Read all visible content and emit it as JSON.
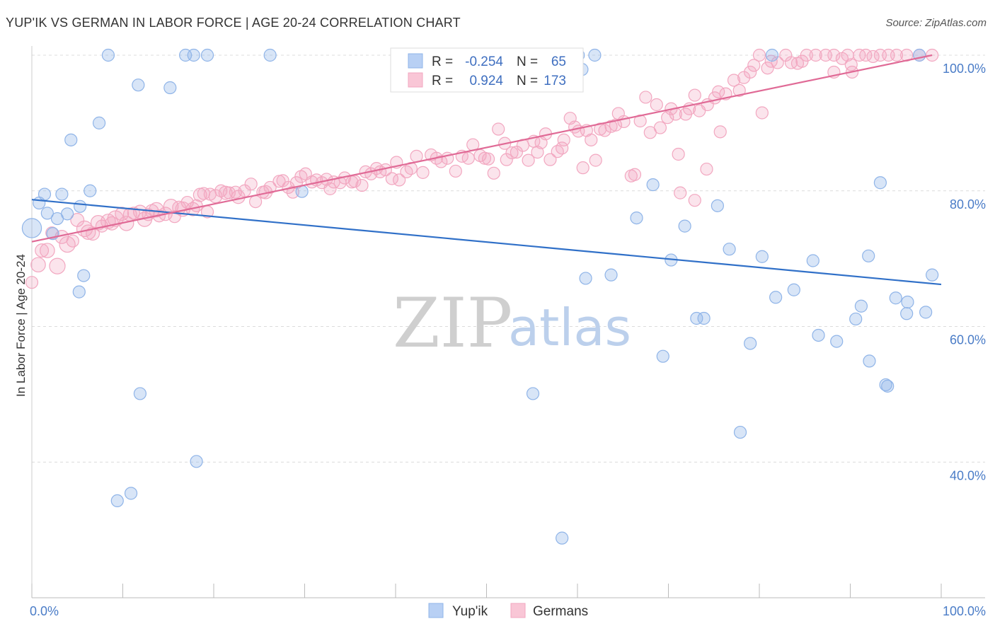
{
  "title": "YUP'IK VS GERMAN IN LABOR FORCE | AGE 20-24 CORRELATION CHART",
  "source": "Source: ZipAtlas.com",
  "watermark": {
    "zip": "ZIP",
    "atlas": "atlas"
  },
  "chart_data": {
    "type": "scatter",
    "ylabel": "In Labor Force | Age 20-24",
    "xlabel": "",
    "x_tick_labels": [
      "0.0%",
      "100.0%"
    ],
    "y_tick_labels": [
      "40.0%",
      "60.0%",
      "80.0%",
      "100.0%"
    ],
    "y_ticks": [
      40,
      60,
      80,
      100
    ],
    "xlim": [
      0,
      105
    ],
    "ylim": [
      20,
      102
    ],
    "grid": "horizontal dashed",
    "legend_position": "top-center",
    "colors": {
      "yupik": "#8fb4e8",
      "yupik_line": "#3070c8",
      "germans": "#f2a7c0",
      "germans_line": "#e06a96"
    },
    "stats": [
      {
        "r_label": "R =",
        "r": "-0.254",
        "n_label": "N =",
        "n": "65"
      },
      {
        "r_label": "R =",
        "r": "0.924",
        "n_label": "N =",
        "n": "173"
      }
    ],
    "series": [
      {
        "name": "Yup'ik",
        "trend": [
          [
            0,
            78.7
          ],
          [
            100,
            66.2
          ]
        ],
        "points": [
          [
            0,
            74.5,
            1.6
          ],
          [
            0.8,
            78.2,
            1
          ],
          [
            1.4,
            79.5,
            1
          ],
          [
            1.7,
            76.7,
            1
          ],
          [
            2.3,
            73.7,
            1
          ],
          [
            2.8,
            75.9,
            1
          ],
          [
            3.3,
            79.5,
            1
          ],
          [
            3.9,
            76.6,
            1
          ],
          [
            4.3,
            87.5,
            1
          ],
          [
            5.2,
            65.1,
            1
          ],
          [
            5.3,
            77.7,
            1
          ],
          [
            5.7,
            67.5,
            1
          ],
          [
            6.4,
            80,
            1
          ],
          [
            7.4,
            90,
            1
          ],
          [
            8.4,
            100,
            1
          ],
          [
            9.4,
            34.3,
            1
          ],
          [
            10.9,
            35.4,
            1
          ],
          [
            11.7,
            95.6,
            1
          ],
          [
            11.9,
            50.1,
            1
          ],
          [
            15.2,
            95.2,
            1
          ],
          [
            16.9,
            100,
            1
          ],
          [
            17.8,
            100,
            1
          ],
          [
            18.1,
            40.1,
            1
          ],
          [
            19.3,
            100,
            1
          ],
          [
            26.2,
            100,
            1
          ],
          [
            29.7,
            79.9,
            1
          ],
          [
            55.1,
            50.1,
            1
          ],
          [
            58.3,
            28.8,
            1
          ],
          [
            60.1,
            100,
            1
          ],
          [
            60.5,
            97.9,
            1
          ],
          [
            60.9,
            67.1,
            1
          ],
          [
            61.9,
            100,
            1
          ],
          [
            63.7,
            67.6,
            1
          ],
          [
            66.5,
            76,
            1
          ],
          [
            68.3,
            80.9,
            1
          ],
          [
            69.4,
            55.6,
            1
          ],
          [
            70.3,
            69.8,
            1
          ],
          [
            71.8,
            74.8,
            1
          ],
          [
            73.1,
            61.2,
            1
          ],
          [
            73.9,
            61.2,
            1
          ],
          [
            75.4,
            77.8,
            1
          ],
          [
            76.7,
            71.4,
            1
          ],
          [
            77.9,
            44.4,
            1
          ],
          [
            79,
            57.5,
            1
          ],
          [
            80.3,
            70.3,
            1
          ],
          [
            81.4,
            100,
            1
          ],
          [
            81.8,
            64.3,
            1
          ],
          [
            83.8,
            65.4,
            1
          ],
          [
            85.9,
            69.7,
            1
          ],
          [
            86.5,
            58.7,
            1
          ],
          [
            88.5,
            57.8,
            1
          ],
          [
            90.6,
            61.1,
            1
          ],
          [
            91.2,
            63,
            1
          ],
          [
            92,
            70.4,
            1
          ],
          [
            92.1,
            54.9,
            1
          ],
          [
            93.3,
            81.2,
            1
          ],
          [
            93.9,
            51.4,
            1
          ],
          [
            94.1,
            51.2,
            1
          ],
          [
            95,
            64.2,
            1
          ],
          [
            96.2,
            61.9,
            1
          ],
          [
            96.3,
            63.6,
            1
          ],
          [
            97.6,
            100,
            1
          ],
          [
            98.3,
            62.1,
            1
          ],
          [
            99,
            67.6,
            1
          ]
        ]
      },
      {
        "name": "Germans",
        "trend": [
          [
            0,
            72.5
          ],
          [
            99,
            100
          ]
        ],
        "points": [
          [
            0,
            66.5,
            1
          ],
          [
            0.7,
            69.1,
            1.2
          ],
          [
            1.1,
            71.2,
            1.1
          ],
          [
            1.7,
            71.2,
            1.2
          ],
          [
            2.2,
            73.8,
            1
          ],
          [
            2.8,
            68.9,
            1.3
          ],
          [
            3.3,
            73.2,
            1.1
          ],
          [
            3.9,
            72.1,
            1.3
          ],
          [
            4.5,
            72.6,
            1
          ],
          [
            5,
            75.7,
            1.1
          ],
          [
            5.8,
            74.4,
            1.3
          ],
          [
            6.2,
            73.9,
            1.2
          ],
          [
            6.7,
            73.7,
            1.1
          ],
          [
            7.3,
            75.3,
            1.2
          ],
          [
            7.7,
            74.8,
            1
          ],
          [
            8.4,
            75.5,
            1.2
          ],
          [
            8.8,
            75.2,
            1.1
          ],
          [
            9.2,
            75.9,
            1.3
          ],
          [
            9.9,
            76.6,
            1.1
          ],
          [
            10.4,
            75.2,
            1.2
          ],
          [
            10.8,
            76.5,
            1.1
          ],
          [
            11.2,
            76.7,
            1
          ],
          [
            11.9,
            76.9,
            1.1
          ],
          [
            12.4,
            75.8,
            1.2
          ],
          [
            12.8,
            76.5,
            1
          ],
          [
            13.2,
            77,
            1.1
          ],
          [
            13.7,
            77.2,
            1.2
          ],
          [
            14,
            76.3,
            1
          ],
          [
            14.7,
            76.6,
            1.1
          ],
          [
            15.3,
            77.7,
            1.2
          ],
          [
            15.7,
            76.2,
            1
          ],
          [
            16.2,
            77.5,
            1.1
          ],
          [
            16.6,
            77.3,
            1.2
          ],
          [
            17.1,
            78.3,
            1
          ],
          [
            17.7,
            77.3,
            1.1
          ],
          [
            18.1,
            77.8,
            1
          ],
          [
            18.5,
            79.4,
            1.1
          ],
          [
            18.9,
            79.6,
            1
          ],
          [
            19.3,
            76.9,
            1
          ],
          [
            19.6,
            79.5,
            1
          ],
          [
            20.2,
            79.2,
            1.1
          ],
          [
            20.8,
            80,
            1
          ],
          [
            21.3,
            79.7,
            1.1
          ],
          [
            21.7,
            79.7,
            1
          ],
          [
            22.4,
            79.8,
            1
          ],
          [
            22.7,
            79.1,
            1.1
          ],
          [
            23.4,
            80,
            1
          ],
          [
            24.1,
            81,
            1
          ],
          [
            24.6,
            78.4,
            1
          ],
          [
            25.4,
            79.8,
            1
          ],
          [
            25.7,
            79.8,
            1.1
          ],
          [
            26.2,
            80.5,
            1
          ],
          [
            27.2,
            81.4,
            1
          ],
          [
            27.6,
            81.5,
            1
          ],
          [
            28.2,
            80.5,
            1
          ],
          [
            28.7,
            79.8,
            1
          ],
          [
            29.1,
            81.2,
            1
          ],
          [
            29.6,
            82.1,
            1
          ],
          [
            30.1,
            82.5,
            1
          ],
          [
            30.8,
            81.3,
            1
          ],
          [
            31.3,
            81.6,
            1
          ],
          [
            31.9,
            81.2,
            1
          ],
          [
            32.4,
            81.7,
            1
          ],
          [
            32.8,
            80.3,
            1
          ],
          [
            33.2,
            81.3,
            1
          ],
          [
            33.9,
            81.2,
            1
          ],
          [
            34.4,
            81.9,
            1
          ],
          [
            35.2,
            81.3,
            1
          ],
          [
            35.5,
            81.4,
            1
          ],
          [
            36.3,
            80.8,
            1
          ],
          [
            36.7,
            82.8,
            1
          ],
          [
            37.3,
            82.5,
            1
          ],
          [
            37.9,
            83.3,
            1
          ],
          [
            38.3,
            82.8,
            1
          ],
          [
            38.9,
            83.1,
            1
          ],
          [
            39.6,
            81.8,
            1
          ],
          [
            40.1,
            84.2,
            1
          ],
          [
            40.4,
            81.6,
            1
          ],
          [
            41.2,
            82.8,
            1
          ],
          [
            41.7,
            83.3,
            1
          ],
          [
            42.3,
            85.1,
            1
          ],
          [
            43,
            82.7,
            1
          ],
          [
            43.9,
            85.3,
            1
          ],
          [
            44.5,
            84.8,
            1
          ],
          [
            45,
            84.3,
            1
          ],
          [
            45.7,
            84.8,
            1
          ],
          [
            46.6,
            82.9,
            1
          ],
          [
            47.3,
            85.1,
            1
          ],
          [
            48,
            84.8,
            1
          ],
          [
            48.5,
            86.8,
            1
          ],
          [
            49.3,
            85.2,
            1
          ],
          [
            49.8,
            84.8,
            1
          ],
          [
            50.2,
            84.7,
            1
          ],
          [
            50.8,
            82.6,
            1
          ],
          [
            51.3,
            89.1,
            1
          ],
          [
            52,
            87,
            1
          ],
          [
            52.2,
            84.6,
            1
          ],
          [
            52.8,
            85.6,
            1
          ],
          [
            53.3,
            85.7,
            1
          ],
          [
            54,
            86.7,
            1
          ],
          [
            54.6,
            84.5,
            1
          ],
          [
            55.2,
            87.3,
            1
          ],
          [
            55.6,
            85.7,
            1
          ],
          [
            56,
            87.1,
            1
          ],
          [
            56.5,
            88.4,
            1
          ],
          [
            57,
            84.6,
            1
          ],
          [
            57.8,
            85.8,
            1
          ],
          [
            58.3,
            86.3,
            1
          ],
          [
            58.5,
            87.5,
            1
          ],
          [
            59.2,
            90.7,
            1
          ],
          [
            59.7,
            89.4,
            1
          ],
          [
            60.1,
            88.8,
            1
          ],
          [
            60.6,
            83.4,
            1
          ],
          [
            61,
            88.9,
            1
          ],
          [
            61.5,
            87.5,
            1
          ],
          [
            62,
            84.5,
            1
          ],
          [
            62.5,
            89.1,
            1
          ],
          [
            63,
            88.9,
            1
          ],
          [
            63.7,
            89.5,
            1
          ],
          [
            64.2,
            89.7,
            1
          ],
          [
            64.5,
            91.4,
            1
          ],
          [
            65.1,
            90.2,
            1
          ],
          [
            65.9,
            82.2,
            1
          ],
          [
            66.3,
            82.4,
            1
          ],
          [
            66.9,
            90.3,
            1
          ],
          [
            67.5,
            93.8,
            1
          ],
          [
            68,
            88.6,
            1
          ],
          [
            68.7,
            92.7,
            1
          ],
          [
            69.1,
            89.3,
            1
          ],
          [
            69.9,
            90.8,
            1
          ],
          [
            70.3,
            92.1,
            1
          ],
          [
            70.8,
            91.3,
            1
          ],
          [
            71.1,
            85.4,
            1
          ],
          [
            71.9,
            91.3,
            1
          ],
          [
            72.3,
            92.1,
            1
          ],
          [
            72.9,
            94.1,
            1
          ],
          [
            73.4,
            91.8,
            1
          ],
          [
            74.3,
            92.7,
            1
          ],
          [
            75.1,
            93.7,
            1
          ],
          [
            75.5,
            94.6,
            1
          ],
          [
            75.7,
            88.7,
            1
          ],
          [
            76.3,
            94.3,
            1
          ],
          [
            77.2,
            96.3,
            1
          ],
          [
            77.8,
            94.8,
            1
          ],
          [
            78.3,
            96.7,
            1
          ],
          [
            79,
            97.5,
            1
          ],
          [
            79.4,
            98.5,
            1
          ],
          [
            80,
            100,
            1
          ],
          [
            80.3,
            91.5,
            1
          ],
          [
            80.9,
            98.1,
            1
          ],
          [
            81.3,
            99.1,
            1
          ],
          [
            82,
            98.9,
            1
          ],
          [
            82.9,
            100,
            1
          ],
          [
            83.5,
            98.9,
            1
          ],
          [
            84.2,
            98.8,
            1
          ],
          [
            84.7,
            99.1,
            1
          ],
          [
            85.2,
            100,
            1
          ],
          [
            86.2,
            100,
            1
          ],
          [
            87.3,
            100,
            1
          ],
          [
            88.2,
            100,
            1
          ],
          [
            89.1,
            99.5,
            1
          ],
          [
            89.7,
            100,
            1
          ],
          [
            90.1,
            98.6,
            1
          ],
          [
            91,
            100,
            1
          ],
          [
            91.7,
            100,
            1
          ],
          [
            92.5,
            99.8,
            1
          ],
          [
            93.3,
            100,
            1
          ],
          [
            94.2,
            100,
            1
          ],
          [
            95.1,
            100,
            1
          ],
          [
            96.2,
            100,
            1
          ],
          [
            97.6,
            100,
            1
          ],
          [
            99,
            100,
            1
          ],
          [
            71.3,
            79.7,
            1
          ],
          [
            72.9,
            78.6,
            1
          ],
          [
            74.2,
            83.2,
            1
          ],
          [
            88.2,
            97.5,
            1
          ],
          [
            90.2,
            97.5,
            1
          ]
        ]
      }
    ]
  }
}
